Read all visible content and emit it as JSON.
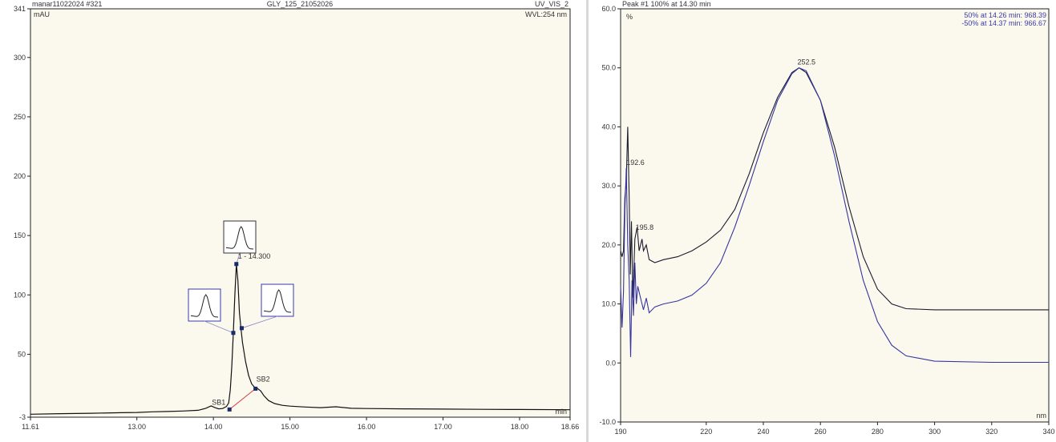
{
  "left_header": {
    "sample": "manar11022024 #321",
    "sequence": "GLY_125_21052026",
    "channel": "UV_VIS_2"
  },
  "right_header": {
    "title": "Peak #1   100% at 14.30 min",
    "match_line1": "50% at 14.26 min:  968.39",
    "match_line2": "-50% at 14.37 min:  966.67"
  },
  "chart_data": [
    {
      "type": "line",
      "ylabel": "mAU",
      "xlabel": "min",
      "wavelength_label": "WVL:254 nm",
      "xlim": [
        11.61,
        18.66
      ],
      "ylim": [
        -3,
        341
      ],
      "x_ticks": [
        {
          "v": 11.61,
          "label": "11.61"
        },
        {
          "v": 13.0,
          "label": "13.00"
        },
        {
          "v": 14.0,
          "label": "14.00"
        },
        {
          "v": 15.0,
          "label": "15.00"
        },
        {
          "v": 16.0,
          "label": "16.00"
        },
        {
          "v": 17.0,
          "label": "17.00"
        },
        {
          "v": 18.0,
          "label": "18.00"
        },
        {
          "v": 18.66,
          "label": "18.66"
        }
      ],
      "y_ticks": [
        {
          "v": -3,
          "label": "-3"
        },
        {
          "v": 50,
          "label": "50"
        },
        {
          "v": 100,
          "label": "100"
        },
        {
          "v": 150,
          "label": "150"
        },
        {
          "v": 200,
          "label": "200"
        },
        {
          "v": 250,
          "label": "250"
        },
        {
          "v": 300,
          "label": "300"
        },
        {
          "v": 341,
          "label": "341"
        }
      ],
      "series": [
        {
          "color": "#111111",
          "points": [
            [
              11.61,
              -0.5
            ],
            [
              12.0,
              0
            ],
            [
              12.4,
              0.3
            ],
            [
              12.8,
              0.8
            ],
            [
              13.0,
              1.0
            ],
            [
              13.2,
              1.5
            ],
            [
              13.4,
              1.8
            ],
            [
              13.6,
              2.2
            ],
            [
              13.8,
              2.8
            ],
            [
              13.9,
              4.5
            ],
            [
              13.97,
              6.5
            ],
            [
              14.02,
              5
            ],
            [
              14.07,
              4
            ],
            [
              14.12,
              4.3
            ],
            [
              14.17,
              6
            ],
            [
              14.2,
              9
            ],
            [
              14.22,
              20
            ],
            [
              14.24,
              40
            ],
            [
              14.26,
              68
            ],
            [
              14.28,
              100
            ],
            [
              14.3,
              126
            ],
            [
              14.32,
              112
            ],
            [
              14.34,
              85
            ],
            [
              14.36,
              72
            ],
            [
              14.38,
              60
            ],
            [
              14.42,
              44
            ],
            [
              14.46,
              32
            ],
            [
              14.5,
              25
            ],
            [
              14.54,
              22
            ],
            [
              14.58,
              21
            ],
            [
              14.62,
              19
            ],
            [
              14.66,
              15
            ],
            [
              14.72,
              11
            ],
            [
              14.8,
              8.5
            ],
            [
              14.9,
              7
            ],
            [
              15.0,
              6.3
            ],
            [
              15.2,
              5.6
            ],
            [
              15.4,
              5
            ],
            [
              15.6,
              5.8
            ],
            [
              15.8,
              4.5
            ],
            [
              16.0,
              4.3
            ],
            [
              16.5,
              4
            ],
            [
              17.0,
              3.8
            ],
            [
              17.5,
              3.6
            ],
            [
              18.0,
              3.5
            ],
            [
              18.66,
              3.3
            ]
          ]
        }
      ],
      "baseline": {
        "color": "#d04040",
        "from": [
          14.21,
          3.5
        ],
        "to": [
          14.55,
          21
        ]
      },
      "markers": [
        {
          "x": 14.21,
          "y": 3.5,
          "label": "SB1"
        },
        {
          "x": 14.26,
          "y": 68,
          "label": ""
        },
        {
          "x": 14.3,
          "y": 126,
          "label": "1 - 14.300"
        },
        {
          "x": 14.37,
          "y": 72,
          "label": ""
        },
        {
          "x": 14.55,
          "y": 21,
          "label": "SB2"
        }
      ],
      "thumbnails": [
        {
          "name": "thumb-apex",
          "border": "#333333",
          "link_to": [
            14.3,
            126
          ]
        },
        {
          "name": "thumb-upslope",
          "border": "#3a3aa8",
          "link_to": [
            14.26,
            68
          ]
        },
        {
          "name": "thumb-downslope",
          "border": "#3a3aa8",
          "link_to": [
            14.37,
            72
          ]
        }
      ]
    },
    {
      "type": "line",
      "ylabel": "%",
      "xlabel": "nm",
      "xlim": [
        190,
        340
      ],
      "ylim": [
        -10,
        60
      ],
      "x_ticks": [
        {
          "v": 190,
          "label": "190"
        },
        {
          "v": 220,
          "label": "220"
        },
        {
          "v": 240,
          "label": "240"
        },
        {
          "v": 260,
          "label": "260"
        },
        {
          "v": 280,
          "label": "280"
        },
        {
          "v": 300,
          "label": "300"
        },
        {
          "v": 320,
          "label": "320"
        },
        {
          "v": 340,
          "label": "340"
        }
      ],
      "y_ticks": [
        {
          "v": -10,
          "label": "-10.0"
        },
        {
          "v": 0,
          "label": "0.0"
        },
        {
          "v": 10,
          "label": "10.0"
        },
        {
          "v": 20,
          "label": "20.0"
        },
        {
          "v": 30,
          "label": "30.0"
        },
        {
          "v": 40,
          "label": "40.0"
        },
        {
          "v": 50,
          "label": "50.0"
        },
        {
          "v": 60,
          "label": "60.0"
        }
      ],
      "annotations": [
        {
          "x": 252.5,
          "y": 50,
          "label": "252.5"
        },
        {
          "x": 192.6,
          "y": 33,
          "label": "192.6"
        },
        {
          "x": 195.8,
          "y": 22,
          "label": "195.8"
        }
      ],
      "series": [
        {
          "color": "#1a1a2e",
          "points": [
            [
              190,
              19
            ],
            [
              190.5,
              18
            ],
            [
              191,
              19
            ],
            [
              191.5,
              28
            ],
            [
              192,
              31
            ],
            [
              192.5,
              40
            ],
            [
              193,
              28
            ],
            [
              193.4,
              15
            ],
            [
              193.8,
              24
            ],
            [
              194.3,
              11
            ],
            [
              195,
              21
            ],
            [
              195.8,
              23
            ],
            [
              196.5,
              19
            ],
            [
              197.5,
              21
            ],
            [
              198,
              19
            ],
            [
              199,
              20
            ],
            [
              200,
              17.5
            ],
            [
              202,
              17
            ],
            [
              205,
              17.5
            ],
            [
              210,
              18
            ],
            [
              215,
              19
            ],
            [
              220,
              20.5
            ],
            [
              225,
              22.5
            ],
            [
              230,
              26
            ],
            [
              235,
              32
            ],
            [
              240,
              39
            ],
            [
              245,
              45
            ],
            [
              250,
              49.2
            ],
            [
              252.5,
              50
            ],
            [
              255,
              49.2
            ],
            [
              260,
              44.5
            ],
            [
              265,
              36.5
            ],
            [
              270,
              26.5
            ],
            [
              275,
              18
            ],
            [
              280,
              12.5
            ],
            [
              285,
              10
            ],
            [
              290,
              9.2
            ],
            [
              300,
              9
            ],
            [
              320,
              9
            ],
            [
              340,
              9
            ]
          ]
        },
        {
          "color": "#3535a0",
          "points": [
            [
              190,
              13
            ],
            [
              190.5,
              6
            ],
            [
              191,
              12
            ],
            [
              191.5,
              26
            ],
            [
              192,
              33
            ],
            [
              192.5,
              20
            ],
            [
              193,
              14
            ],
            [
              193.5,
              1
            ],
            [
              194,
              14
            ],
            [
              194.5,
              8
            ],
            [
              195,
              17
            ],
            [
              195.5,
              10
            ],
            [
              196,
              13
            ],
            [
              197,
              11
            ],
            [
              198,
              9
            ],
            [
              199,
              11
            ],
            [
              200,
              8.5
            ],
            [
              202,
              9.5
            ],
            [
              205,
              10
            ],
            [
              210,
              10.5
            ],
            [
              215,
              11.5
            ],
            [
              220,
              13.5
            ],
            [
              225,
              17
            ],
            [
              230,
              23
            ],
            [
              235,
              30
            ],
            [
              240,
              37.5
            ],
            [
              245,
              44.5
            ],
            [
              250,
              49
            ],
            [
              252.5,
              50
            ],
            [
              255,
              49.5
            ],
            [
              260,
              44.5
            ],
            [
              265,
              35
            ],
            [
              270,
              24
            ],
            [
              275,
              14
            ],
            [
              280,
              7
            ],
            [
              285,
              3
            ],
            [
              290,
              1.2
            ],
            [
              300,
              0.3
            ],
            [
              320,
              0.1
            ],
            [
              340,
              0.1
            ]
          ]
        }
      ]
    }
  ]
}
